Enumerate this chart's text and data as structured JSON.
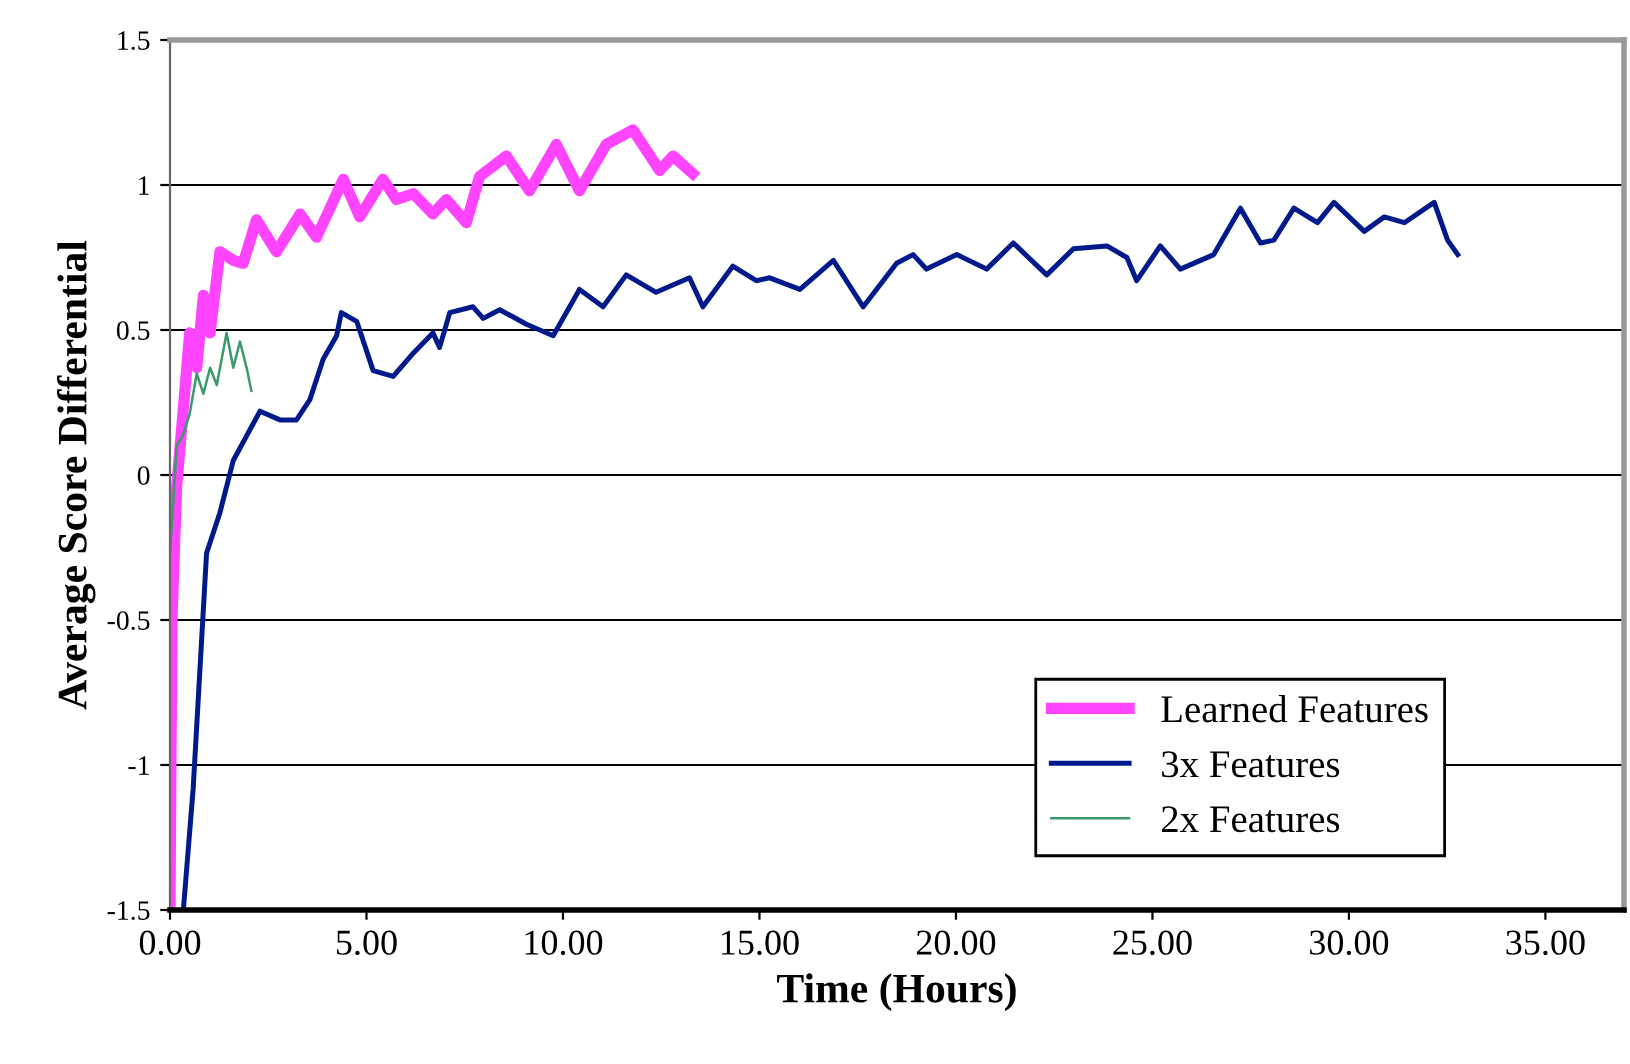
{
  "chart_data": {
    "type": "line",
    "xlabel": "Time (Hours)",
    "ylabel": "Average Score Differential",
    "xlim": [
      0,
      37
    ],
    "ylim": [
      -1.5,
      1.5
    ],
    "xticks": [
      {
        "value": 0,
        "label": "0.00"
      },
      {
        "value": 5,
        "label": "5.00"
      },
      {
        "value": 10,
        "label": "10.00"
      },
      {
        "value": 15,
        "label": "15.00"
      },
      {
        "value": 20,
        "label": "20.00"
      },
      {
        "value": 25,
        "label": "25.00"
      },
      {
        "value": 30,
        "label": "30.00"
      },
      {
        "value": 35,
        "label": "35.00"
      }
    ],
    "yticks": [
      {
        "value": -1.5,
        "label": "-1.5"
      },
      {
        "value": -1,
        "label": "-1"
      },
      {
        "value": -0.5,
        "label": "-0.5"
      },
      0,
      {
        "value": 0.5,
        "label": "0.5"
      },
      1,
      {
        "value": 1.5,
        "label": "1.5"
      }
    ],
    "grid": "y",
    "legend": "bottom right",
    "marker": "none",
    "line_style": "solid",
    "series": [
      {
        "name": "Learned Features",
        "color": "#ff44ff",
        "x": [
          0,
          0.05,
          0.17,
          0.34,
          0.5,
          0.68,
          0.85,
          1.02,
          1.27,
          1.61,
          1.86,
          2.2,
          2.71,
          3.31,
          3.73,
          4.41,
          4.83,
          5.42,
          5.76,
          6.19,
          6.69,
          7.03,
          7.54,
          7.88,
          8.56,
          9.15,
          9.83,
          10.42,
          11.1,
          11.78,
          12.46,
          12.8,
          13.3
        ],
        "values": [
          -1.5,
          -0.5,
          -0.04,
          0.23,
          0.49,
          0.37,
          0.62,
          0.49,
          0.77,
          0.74,
          0.73,
          0.88,
          0.77,
          0.9,
          0.82,
          1.02,
          0.89,
          1.02,
          0.95,
          0.97,
          0.9,
          0.95,
          0.87,
          1.03,
          1.1,
          0.98,
          1.14,
          0.98,
          1.14,
          1.19,
          1.05,
          1.1,
          1.04
        ]
      },
      {
        "name": "3x Features",
        "color": "#001a8c",
        "x": [
          0.34,
          0.59,
          0.93,
          1.27,
          1.61,
          2.29,
          2.8,
          3.22,
          3.56,
          3.9,
          4.24,
          4.36,
          4.75,
          5.17,
          5.68,
          6.19,
          6.69,
          6.86,
          7.12,
          7.71,
          7.97,
          8.39,
          9.07,
          9.75,
          10.42,
          11.02,
          11.61,
          12.37,
          13.22,
          13.56,
          14.32,
          14.92,
          15.26,
          16.03,
          16.88,
          17.64,
          18.49,
          18.91,
          19.25,
          20.02,
          20.78,
          21.46,
          22.31,
          22.99,
          23.84,
          24.35,
          24.6,
          25.2,
          25.71,
          26.56,
          27.24,
          27.75,
          28.09,
          28.6,
          29.2,
          29.62,
          30.39,
          30.9,
          31.41,
          32.17,
          32.51,
          32.77
        ],
        "values": [
          -1.5,
          -1.08,
          -0.27,
          -0.13,
          0.05,
          0.22,
          0.19,
          0.19,
          0.26,
          0.4,
          0.48,
          0.56,
          0.53,
          0.36,
          0.34,
          0.42,
          0.49,
          0.44,
          0.56,
          0.58,
          0.54,
          0.57,
          0.52,
          0.48,
          0.64,
          0.58,
          0.69,
          0.63,
          0.68,
          0.58,
          0.72,
          0.67,
          0.68,
          0.64,
          0.74,
          0.58,
          0.73,
          0.76,
          0.71,
          0.76,
          0.71,
          0.8,
          0.69,
          0.78,
          0.79,
          0.75,
          0.67,
          0.79,
          0.71,
          0.76,
          0.92,
          0.8,
          0.81,
          0.92,
          0.87,
          0.94,
          0.84,
          0.89,
          0.87,
          0.94,
          0.81,
          0.76
        ]
      },
      {
        "name": "2x Features",
        "color": "#3a9a6a",
        "x": [
          0,
          0.17,
          0.34,
          0.5,
          0.68,
          0.85,
          1.02,
          1.19,
          1.44,
          1.61,
          1.78,
          1.95,
          2.07
        ],
        "values": [
          -0.27,
          0.1,
          0.14,
          0.21,
          0.35,
          0.28,
          0.37,
          0.31,
          0.49,
          0.37,
          0.46,
          0.37,
          0.29
        ]
      }
    ]
  }
}
